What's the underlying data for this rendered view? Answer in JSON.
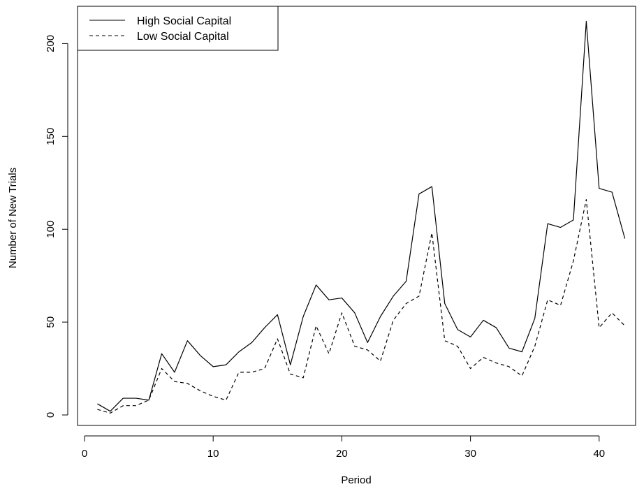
{
  "chart_data": {
    "type": "line",
    "title": "",
    "xlabel": "Period",
    "ylabel": "Number of New Trials",
    "xlim": [
      0,
      42
    ],
    "ylim": [
      0,
      215
    ],
    "xticks": [
      0,
      10,
      20,
      30,
      40
    ],
    "yticks": [
      0,
      50,
      100,
      150,
      200
    ],
    "grid": false,
    "legend": "top-left",
    "x": [
      1,
      2,
      3,
      4,
      5,
      6,
      7,
      8,
      9,
      10,
      11,
      12,
      13,
      14,
      15,
      16,
      17,
      18,
      19,
      20,
      21,
      22,
      23,
      24,
      25,
      26,
      27,
      28,
      29,
      30,
      31,
      32,
      33,
      34,
      35,
      36,
      37,
      38,
      39,
      40,
      41,
      42
    ],
    "series": [
      {
        "name": "High Social Capital",
        "line_style": "solid",
        "color": "#000000",
        "values": [
          6,
          2,
          9,
          9,
          8,
          33,
          23,
          40,
          32,
          26,
          27,
          34,
          39,
          47,
          54,
          27,
          53,
          70,
          62,
          63,
          55,
          39,
          53,
          64,
          72,
          119,
          123,
          60,
          46,
          42,
          51,
          47,
          36,
          34,
          52,
          103,
          101,
          105,
          212,
          122,
          120,
          95
        ]
      },
      {
        "name": "Low Social Capital",
        "line_style": "dashed",
        "color": "#000000",
        "values": [
          3,
          1,
          5,
          5,
          8,
          25,
          18,
          17,
          13,
          10,
          8,
          23,
          23,
          25,
          41,
          22,
          20,
          48,
          33,
          55,
          37,
          35,
          29,
          51,
          60,
          64,
          98,
          40,
          37,
          25,
          31,
          28,
          26,
          21,
          37,
          62,
          59,
          83,
          116,
          47,
          55,
          48
        ]
      }
    ]
  }
}
